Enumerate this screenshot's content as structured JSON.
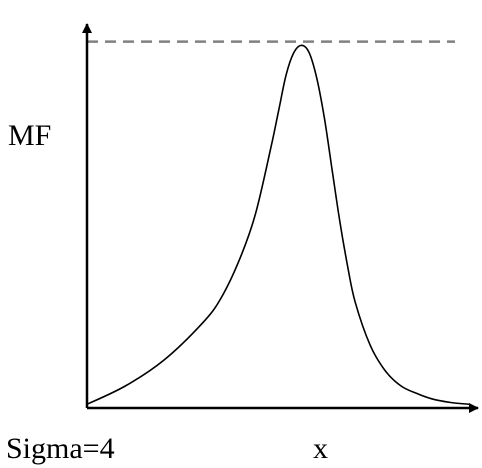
{
  "chart_data": {
    "type": "line",
    "title": "",
    "ylabel": "MF",
    "xlabel": "x",
    "annotation": "Sigma=4",
    "x": [
      0.0,
      0.1,
      0.2,
      0.3,
      0.35,
      0.4,
      0.44,
      0.48,
      0.5,
      0.52,
      0.54,
      0.56,
      0.58,
      0.6,
      0.62,
      0.64,
      0.66,
      0.68,
      0.7,
      0.74,
      0.78,
      0.82,
      0.86,
      0.9,
      0.95,
      1.0
    ],
    "y": [
      0.01,
      0.06,
      0.13,
      0.23,
      0.3,
      0.41,
      0.53,
      0.71,
      0.81,
      0.91,
      0.97,
      0.99,
      0.97,
      0.9,
      0.79,
      0.65,
      0.51,
      0.39,
      0.29,
      0.17,
      0.1,
      0.06,
      0.04,
      0.025,
      0.015,
      0.01
    ],
    "xlim": [
      0,
      1
    ],
    "ylim": [
      0,
      1.07
    ],
    "reference_line": {
      "y": 1.0,
      "style": "dashed",
      "color": "#808080"
    },
    "grid": false,
    "colors": {
      "curve": "#000000",
      "axes": "#000000"
    }
  }
}
